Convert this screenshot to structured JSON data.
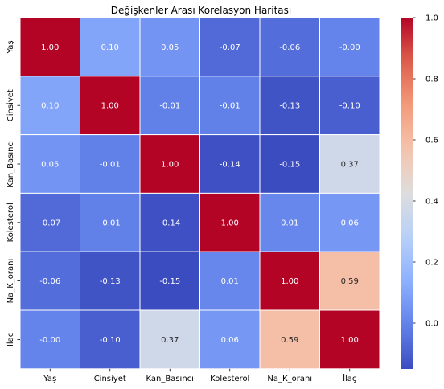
{
  "chart_data": {
    "type": "heatmap",
    "title": "Değişkenler Arası Korelasyon Haritası",
    "labels": [
      "Yaş",
      "Cinsiyet",
      "Kan_Basıncı",
      "Kolesterol",
      "Na_K_oranı",
      "İlaç"
    ],
    "values": [
      [
        1.0,
        0.1,
        0.05,
        -0.07,
        -0.06,
        -0.0
      ],
      [
        0.1,
        1.0,
        -0.01,
        -0.01,
        -0.13,
        -0.1
      ],
      [
        0.05,
        -0.01,
        1.0,
        -0.14,
        -0.15,
        0.37
      ],
      [
        -0.07,
        -0.01,
        -0.14,
        1.0,
        0.01,
        0.06
      ],
      [
        -0.06,
        -0.13,
        -0.15,
        0.01,
        1.0,
        0.59
      ],
      [
        -0.0,
        -0.1,
        0.37,
        0.06,
        0.59,
        1.0
      ]
    ],
    "display": [
      [
        "1.00",
        "0.10",
        "0.05",
        "-0.07",
        "-0.06",
        "-0.00"
      ],
      [
        "0.10",
        "1.00",
        "-0.01",
        "-0.01",
        "-0.13",
        "-0.10"
      ],
      [
        "0.05",
        "-0.01",
        "1.00",
        "-0.14",
        "-0.15",
        "0.37"
      ],
      [
        "-0.07",
        "-0.01",
        "-0.14",
        "1.00",
        "0.01",
        "0.06"
      ],
      [
        "-0.06",
        "-0.13",
        "-0.15",
        "0.01",
        "1.00",
        "0.59"
      ],
      [
        "-0.00",
        "-0.10",
        "0.37",
        "0.06",
        "0.59",
        "1.00"
      ]
    ],
    "colormap": "coolwarm",
    "vmin": -0.15,
    "vmax": 1.0,
    "colorbar_ticks": [
      0.0,
      0.2,
      0.4,
      0.6,
      0.8,
      1.0
    ],
    "colorbar_tick_labels": [
      "0.0",
      "0.2",
      "0.4",
      "0.6",
      "0.8",
      "1.0"
    ],
    "cell_border_color": "#ffffff"
  }
}
